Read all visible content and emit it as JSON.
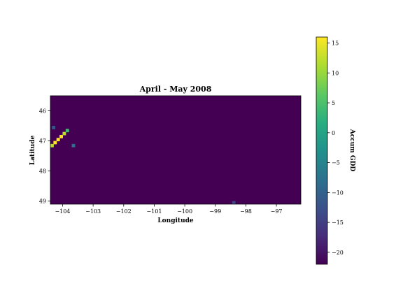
{
  "chart_data": {
    "type": "heatmap",
    "title": "April - May 2008",
    "xlabel": "Longitude",
    "ylabel": "Latitude",
    "xlim": [
      -104.4,
      -96.2
    ],
    "ylim": [
      49.1,
      45.5
    ],
    "xticks": [
      "−104",
      "−103",
      "−102",
      "−101",
      "−100",
      "−99",
      "−98",
      "−97"
    ],
    "xtick_values": [
      -104,
      -103,
      -102,
      -101,
      -100,
      -99,
      -98,
      -97
    ],
    "yticks": [
      "46",
      "47",
      "48",
      "49"
    ],
    "ytick_values": [
      46,
      47,
      48,
      49
    ],
    "background_value": -22,
    "colorbar": {
      "label": "Accum GDD",
      "min": -22,
      "max": 16,
      "colormap": "viridis",
      "ticks": [
        "15",
        "10",
        "5",
        "0",
        "−5",
        "−10",
        "−15",
        "−20"
      ],
      "tick_values": [
        15,
        10,
        5,
        0,
        -5,
        -10,
        -15,
        -20
      ]
    },
    "hotspots": [
      {
        "lon": -104.15,
        "lat": 46.95,
        "value": 16
      },
      {
        "lon": -104.25,
        "lat": 47.05,
        "value": 16
      },
      {
        "lon": -104.05,
        "lat": 46.85,
        "value": 16
      },
      {
        "lon": -103.95,
        "lat": 46.75,
        "value": 12
      },
      {
        "lon": -104.35,
        "lat": 47.15,
        "value": 12
      },
      {
        "lon": -103.85,
        "lat": 46.65,
        "value": 4
      },
      {
        "lon": -104.3,
        "lat": 46.55,
        "value": -12
      },
      {
        "lon": -103.65,
        "lat": 47.15,
        "value": -8
      },
      {
        "lon": -98.4,
        "lat": 49.05,
        "value": -14
      }
    ]
  }
}
